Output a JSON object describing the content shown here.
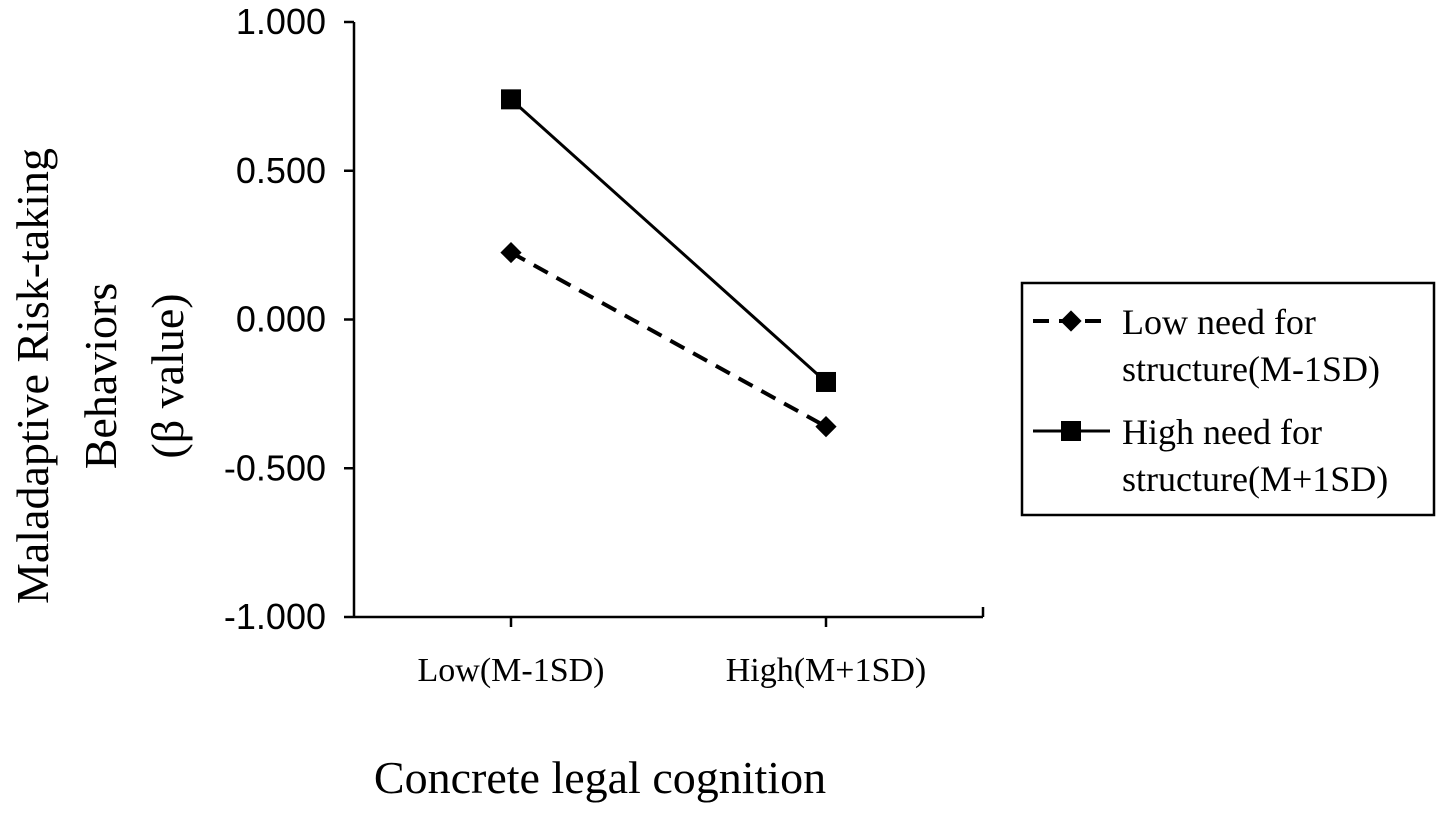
{
  "chart_data": {
    "type": "line",
    "xlabel": "Concrete legal cognition",
    "ylabel_lines": [
      "Maladaptive Risk-taking",
      "Behaviors",
      "(β value)"
    ],
    "categories": [
      "Low(M-1SD)",
      "High(M+1SD)"
    ],
    "yticks": [
      "1.000",
      "0.500",
      "0.000",
      "-0.500",
      "-1.000"
    ],
    "ylim": [
      -1,
      1
    ],
    "grid": false,
    "legend_position": "right",
    "series": [
      {
        "name_lines": [
          "Low need for",
          "structure(M-1SD)"
        ],
        "values": [
          0.225,
          -0.36
        ],
        "line_style": "dashed",
        "marker": "diamond",
        "color": "#000000"
      },
      {
        "name_lines": [
          "High need for",
          "structure(M+1SD)"
        ],
        "values": [
          0.74,
          -0.21
        ],
        "line_style": "solid",
        "marker": "square",
        "color": "#000000"
      }
    ]
  }
}
